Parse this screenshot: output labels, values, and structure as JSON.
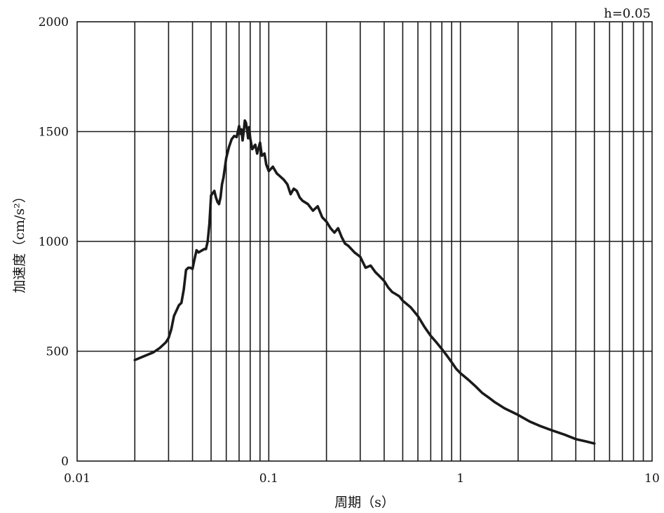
{
  "chart_data": {
    "type": "line",
    "title": "",
    "annotation": "h=0.05",
    "xlabel": "周期（s）",
    "ylabel": "加速度（cm/s²）",
    "x_scale": "log",
    "xlim": [
      0.01,
      10
    ],
    "ylim": [
      0,
      2000
    ],
    "x_ticks": [
      0.01,
      0.1,
      1,
      10
    ],
    "x_tick_labels": [
      "0.01",
      "0.1",
      "1",
      "10"
    ],
    "y_ticks": [
      0,
      500,
      1000,
      1500,
      2000
    ],
    "y_tick_labels": [
      "0",
      "500",
      "1000",
      "1500",
      "2000"
    ],
    "grid": true,
    "series": [
      {
        "color": "#1a1a1a",
        "x": [
          0.02,
          0.022,
          0.025,
          0.027,
          0.029,
          0.03,
          0.031,
          0.032,
          0.034,
          0.035,
          0.036,
          0.037,
          0.038,
          0.039,
          0.04,
          0.041,
          0.042,
          0.043,
          0.044,
          0.045,
          0.046,
          0.047,
          0.048,
          0.049,
          0.05,
          0.051,
          0.052,
          0.053,
          0.054,
          0.055,
          0.056,
          0.057,
          0.058,
          0.06,
          0.062,
          0.064,
          0.066,
          0.068,
          0.07,
          0.071,
          0.072,
          0.073,
          0.074,
          0.075,
          0.076,
          0.077,
          0.078,
          0.079,
          0.08,
          0.082,
          0.085,
          0.087,
          0.09,
          0.092,
          0.095,
          0.097,
          0.1,
          0.105,
          0.11,
          0.115,
          0.12,
          0.125,
          0.13,
          0.135,
          0.14,
          0.145,
          0.15,
          0.16,
          0.17,
          0.18,
          0.19,
          0.2,
          0.21,
          0.22,
          0.23,
          0.24,
          0.25,
          0.26,
          0.28,
          0.3,
          0.32,
          0.34,
          0.36,
          0.38,
          0.4,
          0.42,
          0.44,
          0.46,
          0.48,
          0.5,
          0.55,
          0.6,
          0.65,
          0.7,
          0.75,
          0.8,
          0.85,
          0.9,
          0.95,
          1.0,
          1.1,
          1.2,
          1.3,
          1.4,
          1.5,
          1.7,
          2.0,
          2.3,
          2.6,
          3.0,
          3.5,
          4.0,
          4.5,
          5.0
        ],
        "y": [
          460,
          475,
          495,
          515,
          540,
          560,
          600,
          660,
          710,
          720,
          780,
          870,
          880,
          880,
          875,
          920,
          960,
          950,
          955,
          960,
          965,
          965,
          1000,
          1080,
          1210,
          1220,
          1230,
          1200,
          1180,
          1170,
          1200,
          1260,
          1290,
          1380,
          1430,
          1465,
          1480,
          1475,
          1525,
          1490,
          1510,
          1460,
          1500,
          1550,
          1540,
          1510,
          1470,
          1520,
          1470,
          1420,
          1440,
          1400,
          1450,
          1390,
          1400,
          1350,
          1320,
          1340,
          1310,
          1295,
          1280,
          1260,
          1215,
          1240,
          1230,
          1200,
          1185,
          1170,
          1140,
          1160,
          1110,
          1090,
          1060,
          1040,
          1060,
          1020,
          990,
          980,
          950,
          930,
          880,
          890,
          860,
          840,
          820,
          790,
          770,
          760,
          750,
          730,
          700,
          660,
          610,
          570,
          540,
          510,
          480,
          450,
          420,
          400,
          370,
          340,
          310,
          290,
          270,
          240,
          210,
          180,
          160,
          140,
          120,
          100,
          90,
          80
        ]
      }
    ]
  }
}
